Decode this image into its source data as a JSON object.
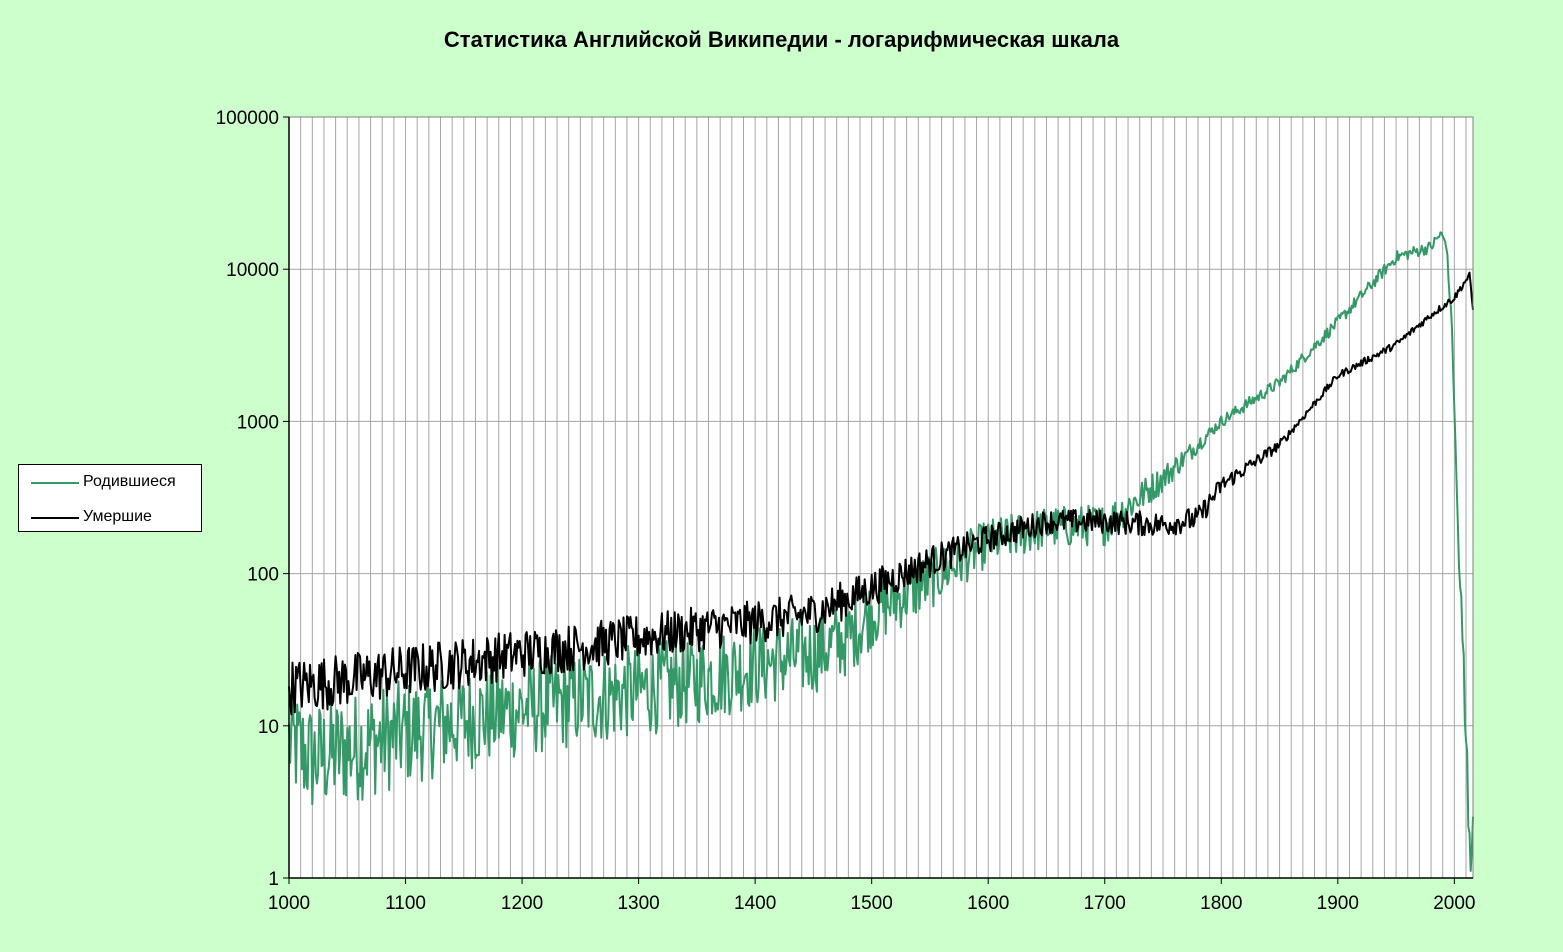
{
  "colors": {
    "background": "#ccffcc",
    "plot_area": "#ffffff",
    "gridline": "#a6a6a6",
    "born": "#339966",
    "died": "#000000"
  },
  "chart_data": {
    "type": "line",
    "title": "Статистика  Английской Википедии - логарифмическая шкала",
    "xlabel": "",
    "ylabel": "",
    "yscale": "log",
    "xlim": [
      1000,
      2016
    ],
    "ylim": [
      1,
      100000
    ],
    "x_ticks": [
      1000,
      1100,
      1200,
      1300,
      1400,
      1500,
      1600,
      1700,
      1800,
      1900,
      2000
    ],
    "x_tick_labels": [
      "1000",
      "1100",
      "1200",
      "1300",
      "1400",
      "1500",
      "1600",
      "1700",
      "1800",
      "1900",
      "2000"
    ],
    "y_ticks": [
      1,
      10,
      100,
      1000,
      10000,
      100000
    ],
    "y_tick_labels": [
      "1",
      "10",
      "100",
      "1000",
      "10000",
      "100000"
    ],
    "minor_x_grid_step": 10,
    "grid": true,
    "legend_position": "left",
    "series": [
      {
        "name": "Родившиеся",
        "color": "#339966",
        "noise": 0.5,
        "points": [
          [
            1000,
            8
          ],
          [
            1020,
            6
          ],
          [
            1050,
            7
          ],
          [
            1100,
            9
          ],
          [
            1150,
            11
          ],
          [
            1200,
            13
          ],
          [
            1250,
            15
          ],
          [
            1300,
            17
          ],
          [
            1350,
            20
          ],
          [
            1400,
            25
          ],
          [
            1450,
            30
          ],
          [
            1480,
            38
          ],
          [
            1500,
            55
          ],
          [
            1550,
            90
          ],
          [
            1600,
            160
          ],
          [
            1650,
            200
          ],
          [
            1700,
            210
          ],
          [
            1750,
            420
          ],
          [
            1800,
            1000
          ],
          [
            1850,
            1800
          ],
          [
            1900,
            4500
          ],
          [
            1950,
            12000
          ],
          [
            1980,
            14000
          ],
          [
            1988,
            17000
          ],
          [
            1993,
            15000
          ],
          [
            1998,
            4000
          ],
          [
            2003,
            200
          ],
          [
            2008,
            20
          ],
          [
            2011,
            4
          ],
          [
            2013,
            3
          ],
          [
            2015,
            2
          ],
          [
            2016,
            1
          ]
        ]
      },
      {
        "name": "Умершие",
        "color": "#000000",
        "noise": 0.3,
        "points": [
          [
            1000,
            18
          ],
          [
            1050,
            20
          ],
          [
            1100,
            23
          ],
          [
            1150,
            26
          ],
          [
            1200,
            30
          ],
          [
            1250,
            33
          ],
          [
            1300,
            38
          ],
          [
            1350,
            43
          ],
          [
            1400,
            48
          ],
          [
            1450,
            55
          ],
          [
            1500,
            80
          ],
          [
            1550,
            120
          ],
          [
            1600,
            170
          ],
          [
            1650,
            220
          ],
          [
            1700,
            220
          ],
          [
            1750,
            210
          ],
          [
            1780,
            230
          ],
          [
            1800,
            380
          ],
          [
            1850,
            700
          ],
          [
            1900,
            2000
          ],
          [
            1950,
            3200
          ],
          [
            1980,
            5000
          ],
          [
            2000,
            6500
          ],
          [
            2010,
            8500
          ],
          [
            2013,
            9000
          ],
          [
            2016,
            5500
          ]
        ]
      }
    ]
  }
}
